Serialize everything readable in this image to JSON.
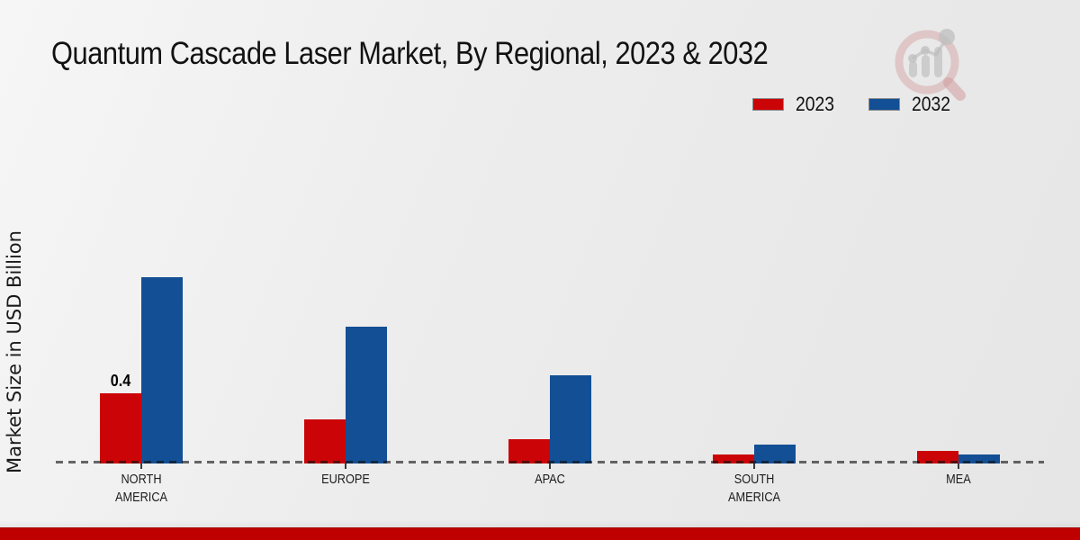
{
  "page": {
    "title": "Quantum Cascade Laser Market, By Regional, 2023 & 2032",
    "y_axis_label": "Market Size in USD Billion"
  },
  "legend": {
    "position": "top-right",
    "items": [
      {
        "label": "2023",
        "color": "#cb0407"
      },
      {
        "label": "2032",
        "color": "#134f94"
      }
    ]
  },
  "chart_data": {
    "type": "bar",
    "title": "Quantum Cascade Laser Market, By Regional, 2023 & 2032",
    "xlabel": "",
    "ylabel": "Market Size in USD Billion",
    "unit": "USD Billion",
    "categories": [
      "NORTH AMERICA",
      "EUROPE",
      "APAC",
      "SOUTH AMERICA",
      "MEA"
    ],
    "series": [
      {
        "name": "2023",
        "color": "#cb0407",
        "values": [
          0.4,
          0.25,
          0.14,
          0.05,
          0.07
        ]
      },
      {
        "name": "2032",
        "color": "#134f94",
        "values": [
          1.06,
          0.78,
          0.5,
          0.11,
          0.05
        ]
      }
    ],
    "bar_labels": [
      {
        "series_index": 0,
        "category_index": 0,
        "text": "0.4"
      }
    ],
    "ylim": [
      0,
      1.2
    ],
    "grid": "off",
    "baseline_style": "dashed zero line",
    "legend_position": "top-right"
  },
  "branding": {
    "logo_icon": "magnifier-bar-chart-logo",
    "bottom_accent_color": "#bf0000"
  }
}
